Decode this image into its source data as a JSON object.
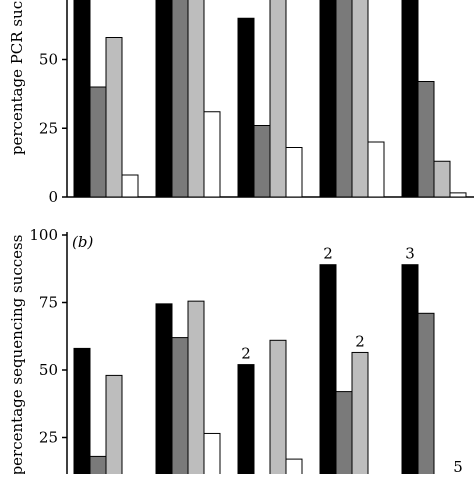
{
  "panel_a": {
    "ylabel": "percentage PCR suc",
    "ticks": [
      "0",
      "25",
      "50"
    ]
  },
  "panel_b": {
    "label": "(b)",
    "ylabel": "percentage sequencing success",
    "ticks": [
      "25",
      "50",
      "75",
      "100"
    ]
  },
  "colors": {
    "series": [
      "#000000",
      "#7a7a7a",
      "#bdbdbd",
      "#ffffff"
    ],
    "stroke": "#000000"
  },
  "chart_data": [
    {
      "type": "bar",
      "panel": "a",
      "groups": 5,
      "series_count": 4,
      "ylim": [
        0,
        72
      ],
      "values": [
        [
          100,
          40,
          58,
          8
        ],
        [
          100,
          100,
          100,
          31
        ],
        [
          65,
          26,
          100,
          18
        ],
        [
          100,
          100,
          100,
          20
        ],
        [
          100,
          42,
          13,
          1.5
        ]
      ],
      "ticks": [
        0,
        25,
        50
      ],
      "grid": false,
      "legend": "none"
    },
    {
      "type": "bar",
      "panel": "b",
      "groups": 5,
      "series_count": 4,
      "ylim": [
        16,
        100
      ],
      "values": [
        [
          58,
          18,
          48,
          null
        ],
        [
          74.5,
          62,
          75.5,
          26.5
        ],
        [
          52,
          null,
          61,
          17
        ],
        [
          89,
          42,
          56.5,
          null
        ],
        [
          89,
          71,
          null,
          null
        ]
      ],
      "annotations": [
        {
          "group": 2,
          "series": 0,
          "text": "2"
        },
        {
          "group": 3,
          "series": 0,
          "text": "2"
        },
        {
          "group": 3,
          "series": 2,
          "text": "2"
        },
        {
          "group": 4,
          "series": 0,
          "text": "3"
        },
        {
          "group": 4,
          "series": 3,
          "text": "5"
        }
      ],
      "ticks": [
        25,
        50,
        75,
        100
      ],
      "grid": false,
      "legend": "none"
    }
  ]
}
